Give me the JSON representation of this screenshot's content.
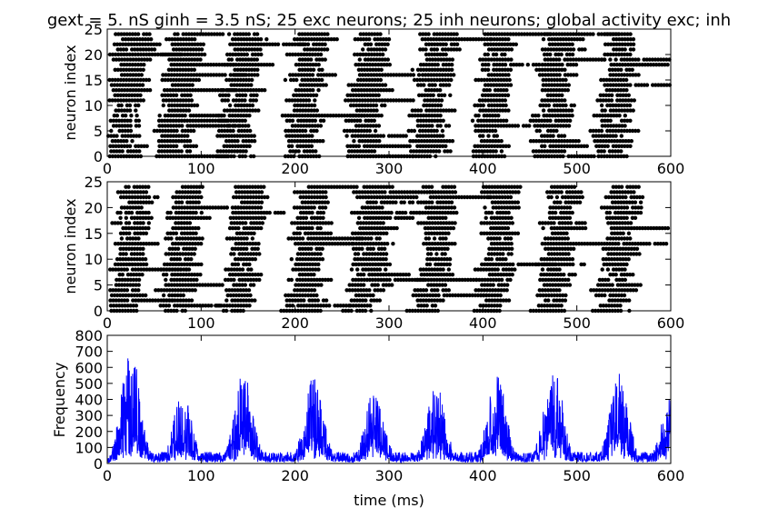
{
  "figure": {
    "title": "gext = 5. nS ginh = 3.5 nS; 25 exc neurons; 25 inh neurons; global activity exc; inh"
  },
  "chart_data": [
    {
      "type": "scatter",
      "title": "",
      "xlabel": "",
      "ylabel": "neuron index",
      "xlim": [
        0,
        600
      ],
      "ylim": [
        0,
        25
      ],
      "xticks": [
        0,
        100,
        200,
        300,
        400,
        500,
        600
      ],
      "yticks": [
        0,
        5,
        10,
        15,
        20,
        25
      ],
      "marker_color": "#000000",
      "burst_centers_ms": [
        25,
        80,
        145,
        215,
        280,
        350,
        415,
        480,
        545
      ],
      "burst_half_width_ms": 23,
      "isi_ms": 3,
      "neuron_count": 25
    },
    {
      "type": "scatter",
      "title": "",
      "xlabel": "",
      "ylabel": "neuron index",
      "xlim": [
        0,
        600
      ],
      "ylim": [
        0,
        25
      ],
      "xticks": [
        0,
        100,
        200,
        300,
        400,
        500,
        600
      ],
      "yticks": [
        0,
        5,
        10,
        15,
        20,
        25
      ],
      "marker_color": "#000000",
      "burst_centers_ms": [
        28,
        83,
        148,
        218,
        283,
        353,
        418,
        483,
        548
      ],
      "burst_half_width_ms": 22,
      "isi_ms": 3,
      "neuron_count": 25
    },
    {
      "type": "line",
      "title": "",
      "xlabel": "time (ms)",
      "ylabel": "Frequency",
      "xlim": [
        0,
        600
      ],
      "ylim": [
        0,
        800
      ],
      "xticks": [
        0,
        100,
        200,
        300,
        400,
        500,
        600
      ],
      "yticks": [
        0,
        100,
        200,
        300,
        400,
        500,
        600,
        700,
        800
      ],
      "line_color": "#0000ff",
      "peaks": [
        {
          "t": 25,
          "value": 720
        },
        {
          "t": 80,
          "value": 440
        },
        {
          "t": 145,
          "value": 570
        },
        {
          "t": 220,
          "value": 545
        },
        {
          "t": 285,
          "value": 480
        },
        {
          "t": 350,
          "value": 500
        },
        {
          "t": 415,
          "value": 550
        },
        {
          "t": 475,
          "value": 630
        },
        {
          "t": 545,
          "value": 560
        },
        {
          "t": 600,
          "value": 430
        }
      ],
      "baseline": 60
    }
  ]
}
